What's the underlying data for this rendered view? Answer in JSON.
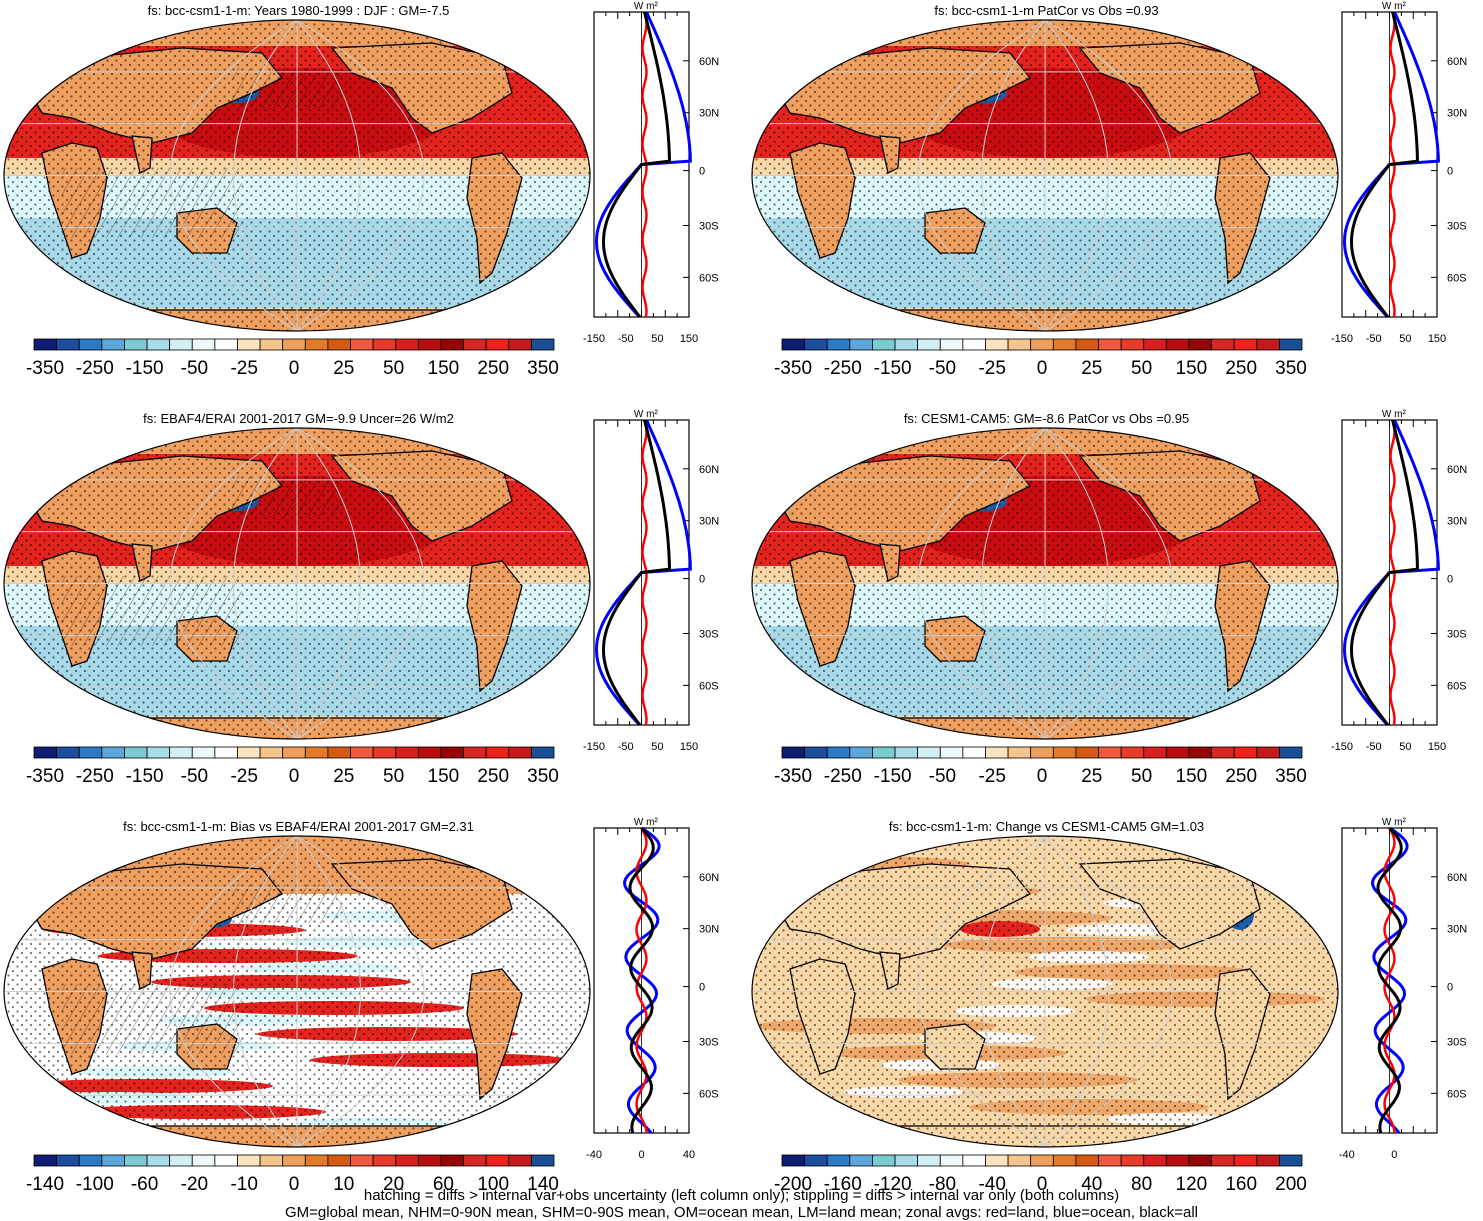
{
  "colors": {
    "land_light": "#f9d7a6",
    "land_mid": "#ef9f5f",
    "warm1": "#e4221e",
    "warm2": "#c3080e",
    "cool1": "#dcf8fb",
    "cool2": "#a8d9e8",
    "cool3": "#89c9dc",
    "deep_blue": "#1a5da8",
    "coast": "#000000",
    "zonal_land": "#ff0000",
    "zonal_ocean": "#0000ff",
    "zonal_all": "#000000"
  },
  "palette": [
    "#0e1f72",
    "#1d4e9e",
    "#2c7ac4",
    "#5ea7dc",
    "#7ccbd2",
    "#a7dce8",
    "#d2f0f5",
    "#edf9fb",
    "#ffffff",
    "#fbe3c0",
    "#f6c48d",
    "#f0a05e",
    "#e47a2b",
    "#d45a14",
    "#f05a3c",
    "#e63a2a",
    "#d81e1e",
    "#b80c0c",
    "#960505",
    "#d62822",
    "#f0201c",
    "#c51a1a",
    "#1a4e96"
  ],
  "panels": [
    {
      "id": "top-left",
      "title": "fs: bcc-csm1-1-m: Years 1980-1999 : DJF : GM=-7.5",
      "mode": "abs",
      "cbar_labels": [
        "-350",
        "-250",
        "-150",
        "-50",
        "-25",
        "0",
        "25",
        "50",
        "150",
        "250",
        "350"
      ],
      "lat_labels": [
        "60N",
        "30N",
        "0",
        "30S",
        "60S"
      ],
      "zonal_units": "W m²",
      "zonal_ticks": [
        "-150",
        "-50",
        "50",
        "150"
      ]
    },
    {
      "id": "top-right",
      "title": "fs: bcc-csm1-1-m PatCor vs Obs =0.93",
      "mode": "abs",
      "cbar_labels": [
        "-350",
        "-250",
        "-150",
        "-50",
        "-25",
        "0",
        "25",
        "50",
        "150",
        "250",
        "350"
      ],
      "lat_labels": [
        "60N",
        "30N",
        "0",
        "30S",
        "60S"
      ],
      "zonal_units": "W m²",
      "zonal_ticks": [
        "-150",
        "-50",
        "50",
        "150"
      ]
    },
    {
      "id": "mid-left",
      "title": "fs: EBAF4/ERAI 2001-2017 GM=-9.9 Uncer=26 W/m2",
      "mode": "abs",
      "cbar_labels": [
        "-350",
        "-250",
        "-150",
        "-50",
        "-25",
        "0",
        "25",
        "50",
        "150",
        "250",
        "350"
      ],
      "lat_labels": [
        "60N",
        "30N",
        "0",
        "30S",
        "60S"
      ],
      "zonal_units": "W m²",
      "zonal_ticks": [
        "-150",
        "-50",
        "50",
        "150"
      ]
    },
    {
      "id": "mid-right",
      "title": "fs: CESM1-CAM5: GM=-8.6 PatCor vs Obs =0.95",
      "mode": "abs",
      "cbar_labels": [
        "-350",
        "-250",
        "-150",
        "-50",
        "-25",
        "0",
        "25",
        "50",
        "150",
        "250",
        "350"
      ],
      "lat_labels": [
        "60N",
        "30N",
        "0",
        "30S",
        "60S"
      ],
      "zonal_units": "W m²",
      "zonal_ticks": [
        "-150",
        "-50",
        "50",
        "150"
      ]
    },
    {
      "id": "bottom-left",
      "title": "fs: bcc-csm1-1-m: Bias vs EBAF4/ERAI 2001-2017 GM=2.31",
      "mode": "bias",
      "cbar_labels": [
        "-140",
        "-100",
        "-60",
        "-20",
        "-10",
        "0",
        "10",
        "20",
        "60",
        "100",
        "140"
      ],
      "lat_labels": [
        "60N",
        "30N",
        "0",
        "30S",
        "60S"
      ],
      "zonal_units": "W m²",
      "zonal_ticks": [
        "-40",
        "0",
        "40"
      ]
    },
    {
      "id": "bottom-right",
      "title": "fs: bcc-csm1-1-m: Change vs CESM1-CAM5 GM=1.03",
      "mode": "change",
      "cbar_labels": [
        "-200",
        "-160",
        "-120",
        "-80",
        "-40",
        "0",
        "40",
        "80",
        "120",
        "160",
        "200"
      ],
      "lat_labels": [
        "60N",
        "30N",
        "0",
        "30S",
        "60S"
      ],
      "zonal_units": "W m²",
      "zonal_ticks": [
        "-40",
        "0"
      ]
    }
  ],
  "footer": {
    "line1": "hatching = diffs > internal var+obs uncertainty (left column only); stippling = diffs > internal var only (both columns)",
    "line2": "GM=global mean, NHM=0-90N mean, SHM=0-90S mean, OM=ocean mean, LM=land mean; zonal avgs: red=land, blue=ocean, black=all"
  }
}
